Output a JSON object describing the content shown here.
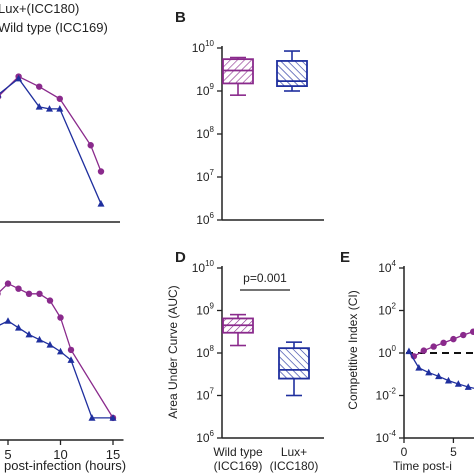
{
  "legend": {
    "lux_label": "Lux+(ICC180)",
    "wt_label": "Wild type (ICC169)"
  },
  "panels": {
    "B": {
      "letter": "B"
    },
    "D": {
      "letter": "D",
      "pvalue": "p=0.001"
    },
    "E": {
      "letter": "E"
    }
  },
  "colors": {
    "wild_type": "#8a2a8c",
    "lux": "#1f2f9e",
    "axis": "#222222"
  },
  "chart_data": [
    {
      "id": "A",
      "type": "line",
      "xlabel_visible": "post-infection (hours)",
      "xticks": [
        5,
        10,
        15
      ],
      "series": [
        {
          "name": "Wild type (ICC169)",
          "marker": "circle",
          "x": [
            3,
            5,
            7,
            9,
            12,
            13
          ],
          "y": [
            0.62,
            0.72,
            0.67,
            0.61,
            0.38,
            0.25
          ]
        },
        {
          "name": "Lux+(ICC180)",
          "marker": "triangle",
          "x": [
            3,
            5,
            7,
            8,
            9,
            13
          ],
          "y": [
            0.63,
            0.71,
            0.57,
            0.56,
            0.56,
            0.09
          ]
        }
      ]
    },
    {
      "id": "C",
      "type": "line",
      "xlabel": "post-infection (hours)",
      "xticks": [
        5,
        10,
        15
      ],
      "xlim": [
        3.4,
        16
      ],
      "series": [
        {
          "name": "Wild type (ICC169)",
          "marker": "circle",
          "x": [
            3,
            4,
            5,
            6,
            7,
            8,
            9,
            10,
            11,
            15
          ],
          "y": [
            0.83,
            0.86,
            0.92,
            0.89,
            0.86,
            0.86,
            0.82,
            0.72,
            0.53,
            0.13
          ]
        },
        {
          "name": "Lux+(ICC180)",
          "marker": "triangle",
          "x": [
            3,
            5,
            6,
            7,
            8,
            9,
            10,
            11,
            13,
            15
          ],
          "y": [
            0.64,
            0.7,
            0.66,
            0.62,
            0.59,
            0.56,
            0.52,
            0.47,
            0.13,
            0.13
          ]
        }
      ]
    },
    {
      "id": "B",
      "type": "box",
      "ylabel": "Area Under Curve (AUC)",
      "yscale": "log",
      "ylim_exp": [
        6,
        10
      ],
      "yticks": [
        "10^6",
        "10^7",
        "10^8",
        "10^9",
        "10^10"
      ],
      "categories": [],
      "boxes": [
        {
          "group": "Wild type (ICC169)",
          "min": 800000000.0,
          "q1": 1500000000.0,
          "median": 3000000000.0,
          "q3": 5500000000.0,
          "max": 6000000000.0
        },
        {
          "group": "Lux+(ICC180)",
          "min": 1000000000.0,
          "q1": 1300000000.0,
          "median": 1700000000.0,
          "q3": 5000000000.0,
          "max": 8500000000.0
        }
      ]
    },
    {
      "id": "D",
      "type": "box",
      "ylabel": "Area Under Curve (AUC)",
      "yscale": "log",
      "ylim_exp": [
        6,
        10
      ],
      "yticks": [
        "10^6",
        "10^7",
        "10^8",
        "10^9",
        "10^10"
      ],
      "categories": [
        "Wild type\n(ICC169)",
        "Lux+\n(ICC180)"
      ],
      "annotation": "p=0.001",
      "boxes": [
        {
          "group": "Wild type (ICC169)",
          "min": 150000000.0,
          "q1": 300000000.0,
          "median": 450000000.0,
          "q3": 650000000.0,
          "max": 800000000.0
        },
        {
          "group": "Lux+(ICC180)",
          "min": 10000000.0,
          "q1": 25000000.0,
          "median": 40000000.0,
          "q3": 130000000.0,
          "max": 180000000.0
        }
      ]
    },
    {
      "id": "E",
      "type": "line",
      "ylabel": "Competitive Index (CI)",
      "xlabel": "Time post-i",
      "yscale": "log",
      "ylim_exp": [
        -4,
        4
      ],
      "yticks": [
        "10^-4",
        "10^-2",
        "10^0",
        "10^2",
        "10^4"
      ],
      "xticks": [
        0,
        5
      ],
      "xlim": [
        0,
        8.5
      ],
      "reference_line": 1,
      "series": [
        {
          "name": "Wild type (ICC169)",
          "marker": "circle",
          "x": [
            1,
            2,
            3,
            4,
            5,
            6,
            7,
            8
          ],
          "y": [
            0.7,
            1.3,
            2,
            3,
            4.5,
            7,
            10,
            15
          ]
        },
        {
          "name": "Lux+(ICC180)",
          "marker": "triangle",
          "x": [
            0.5,
            1.5,
            2.5,
            3.5,
            4.5,
            5.5,
            6.5,
            7.5
          ],
          "y": [
            1.2,
            0.2,
            0.12,
            0.08,
            0.05,
            0.035,
            0.025,
            0.02
          ]
        }
      ]
    }
  ]
}
